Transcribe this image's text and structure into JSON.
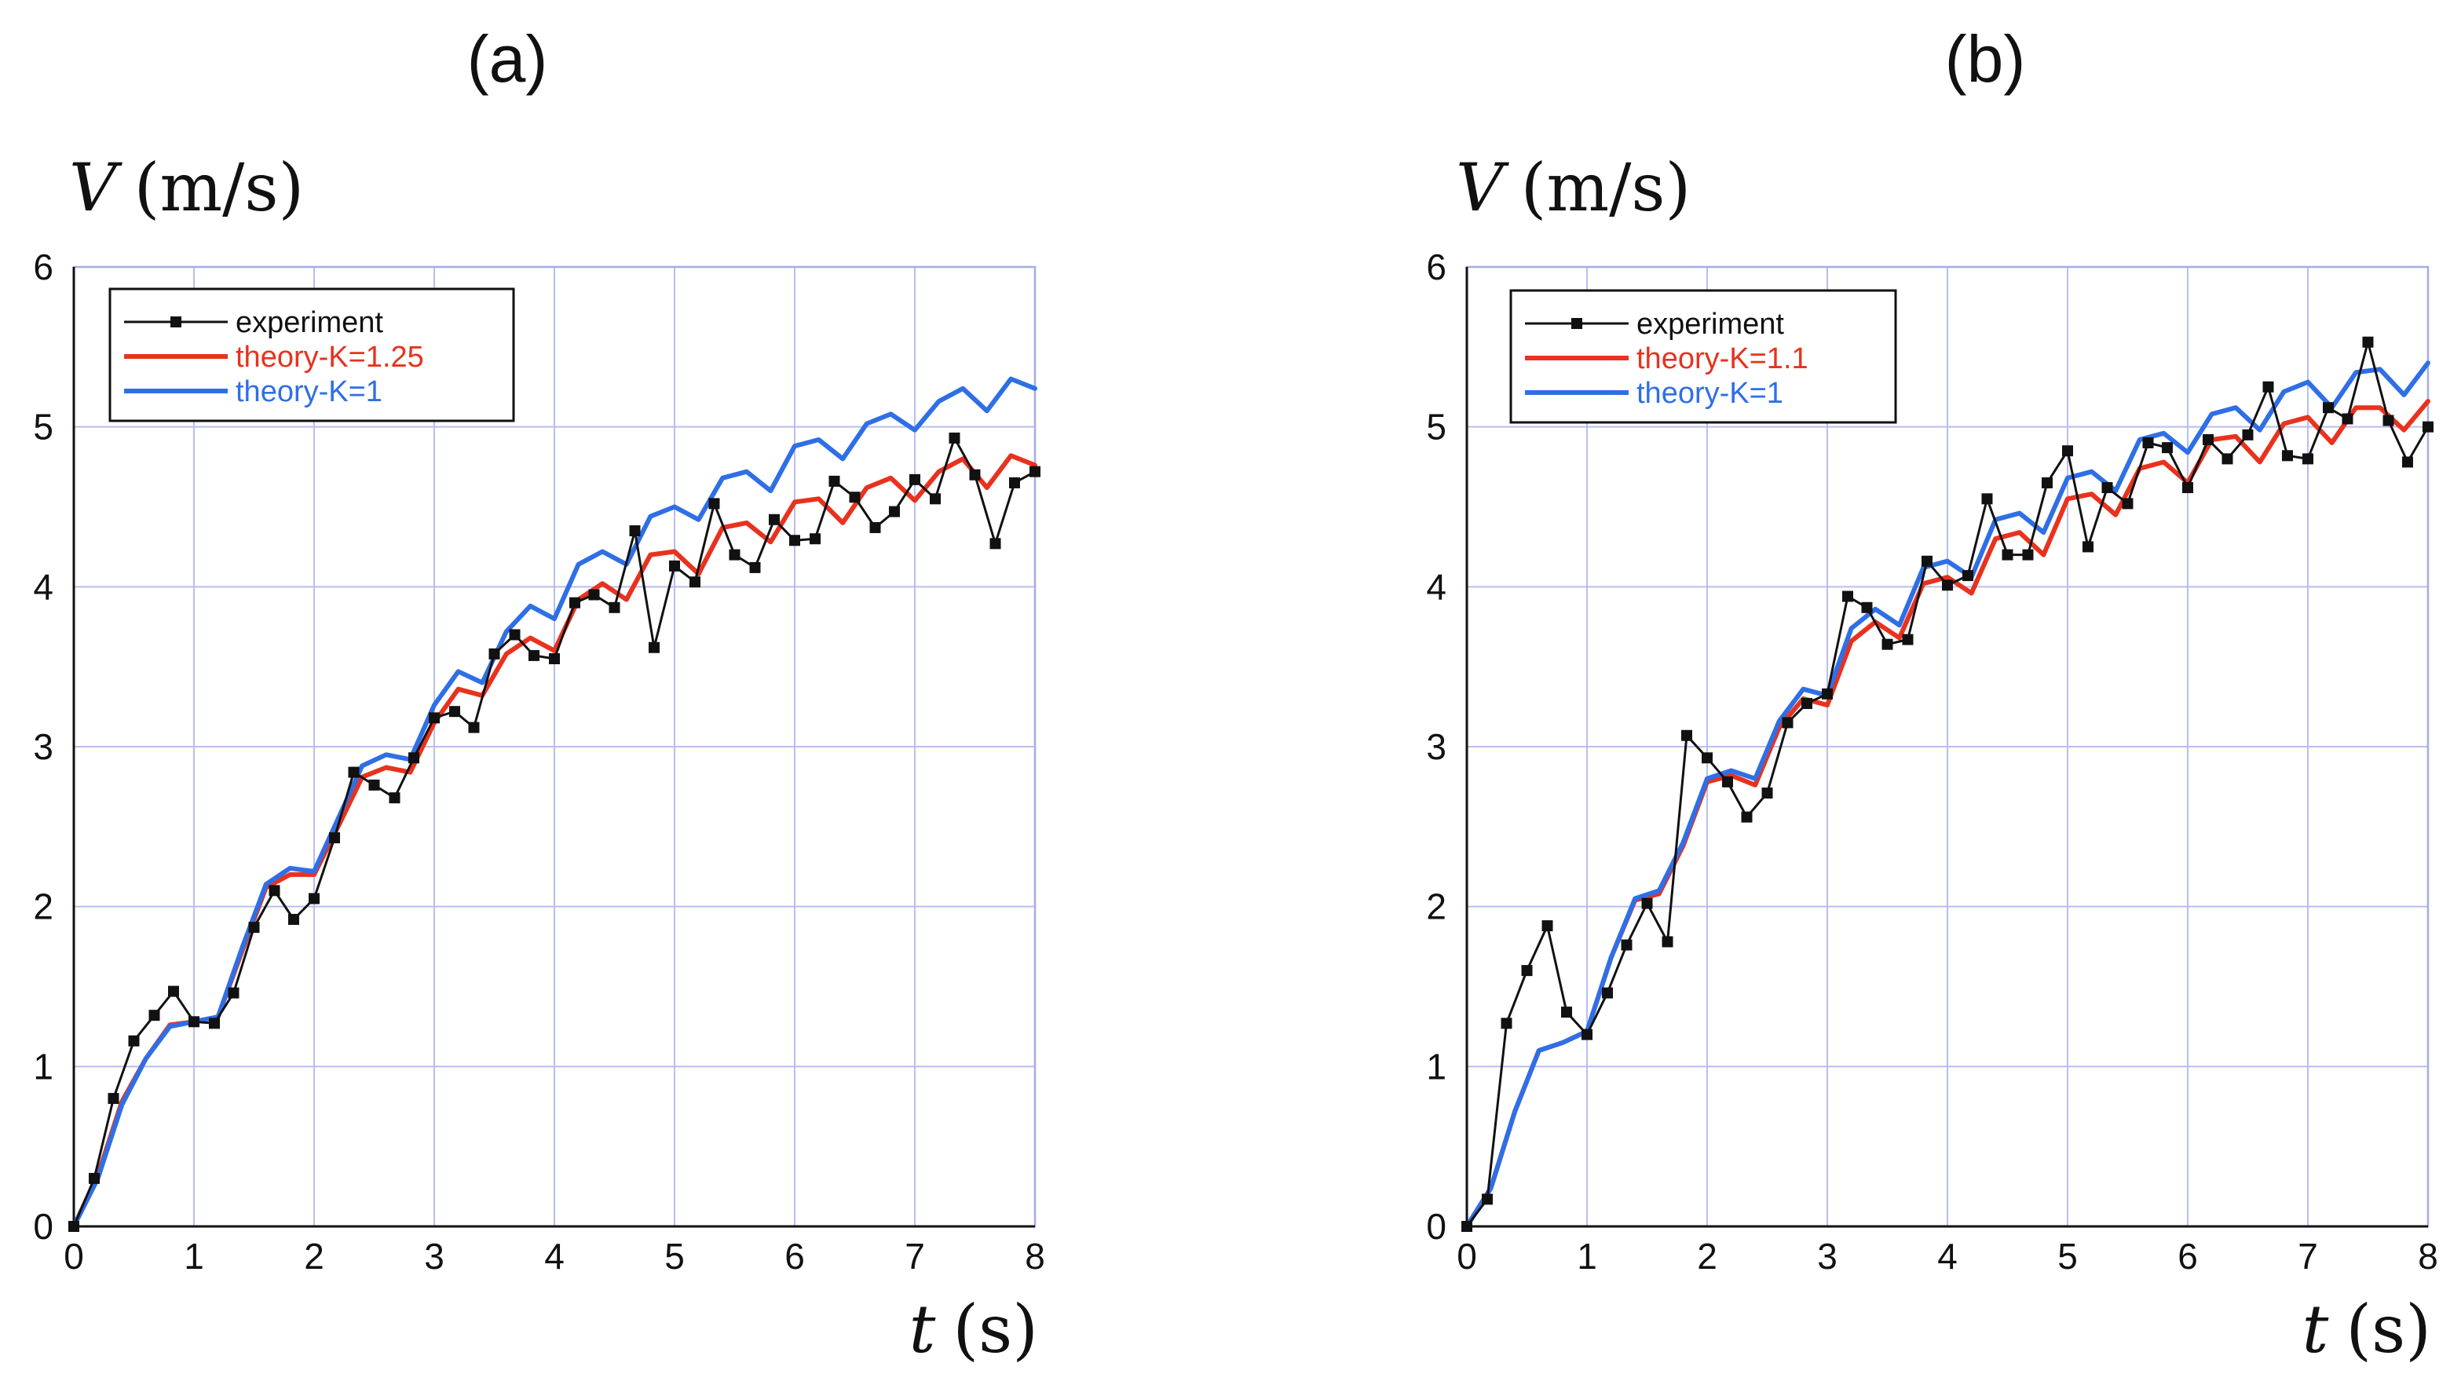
{
  "colors": {
    "experiment": "#111111",
    "theory_high_K": "#e8321e",
    "theory_K1": "#2f6fe6",
    "grid": "#b9bdf0"
  },
  "chart_data": [
    {
      "type": "line",
      "title": "(a)",
      "xlabel": "t (s)",
      "ylabel": "V (m/s)",
      "xlabel_var": "t",
      "xlabel_unit": "(s)",
      "ylabel_var": "V",
      "ylabel_unit": "(m/s)",
      "xlim": [
        0,
        8
      ],
      "ylim": [
        0,
        6
      ],
      "xticks": [
        "0",
        "1",
        "2",
        "3",
        "4",
        "5",
        "6",
        "7",
        "8"
      ],
      "yticks": [
        "0",
        "1",
        "2",
        "3",
        "4",
        "5",
        "6"
      ],
      "grid": true,
      "legend_position": "top-left",
      "series": [
        {
          "name": "experiment",
          "style": "line-square-markers",
          "x": [
            0,
            0.17,
            0.33,
            0.5,
            0.67,
            0.83,
            1.0,
            1.17,
            1.33,
            1.5,
            1.67,
            1.83,
            2.0,
            2.17,
            2.33,
            2.5,
            2.67,
            2.83,
            3.0,
            3.17,
            3.33,
            3.5,
            3.67,
            3.83,
            4.0,
            4.17,
            4.33,
            4.5,
            4.67,
            4.83,
            5.0,
            5.17,
            5.33,
            5.5,
            5.67,
            5.83,
            6.0,
            6.17,
            6.33,
            6.5,
            6.67,
            6.83,
            7.0,
            7.17,
            7.33,
            7.5,
            7.67,
            7.83,
            8.0
          ],
          "y": [
            0,
            0.3,
            0.8,
            1.16,
            1.32,
            1.47,
            1.28,
            1.27,
            1.46,
            1.87,
            2.1,
            1.92,
            2.05,
            2.43,
            2.84,
            2.76,
            2.68,
            2.93,
            3.18,
            3.22,
            3.12,
            3.58,
            3.7,
            3.57,
            3.55,
            3.9,
            3.95,
            3.87,
            4.35,
            3.62,
            4.13,
            4.03,
            4.52,
            4.2,
            4.12,
            4.42,
            4.29,
            4.3,
            4.66,
            4.56,
            4.37,
            4.47,
            4.67,
            4.55,
            4.93,
            4.7,
            4.27,
            4.65,
            4.72
          ]
        },
        {
          "name": "theory-K=1.25",
          "style": "line",
          "color_key": "theory_high_K",
          "K": 1.25,
          "x": [
            0.0,
            0.2,
            0.4,
            0.6,
            0.8,
            1.0,
            1.2,
            1.4,
            1.6,
            1.8,
            2.0,
            2.2,
            2.4,
            2.6,
            2.8,
            3.0,
            3.2,
            3.4,
            3.6,
            3.8,
            4.0,
            4.2,
            4.4,
            4.6,
            4.8,
            5.0,
            5.2,
            5.4,
            5.6,
            5.8,
            6.0,
            6.2,
            6.4,
            6.6,
            6.8,
            7.0,
            7.2,
            7.4,
            7.6,
            7.8,
            8.0
          ],
          "y": [
            0.0,
            0.32,
            0.78,
            1.05,
            1.26,
            1.28,
            1.31,
            1.72,
            2.12,
            2.2,
            2.2,
            2.5,
            2.81,
            2.87,
            2.84,
            3.15,
            3.36,
            3.32,
            3.58,
            3.68,
            3.6,
            3.92,
            4.02,
            3.92,
            4.2,
            4.22,
            4.08,
            4.37,
            4.4,
            4.28,
            4.53,
            4.55,
            4.4,
            4.62,
            4.68,
            4.54,
            4.72,
            4.8,
            4.62,
            4.82,
            4.76
          ]
        },
        {
          "name": "theory-K=1",
          "style": "line",
          "color_key": "theory_K1",
          "K": 1,
          "x": [
            0.0,
            0.2,
            0.4,
            0.6,
            0.8,
            1.0,
            1.2,
            1.4,
            1.6,
            1.8,
            2.0,
            2.2,
            2.4,
            2.6,
            2.8,
            3.0,
            3.2,
            3.4,
            3.6,
            3.8,
            4.0,
            4.2,
            4.4,
            4.6,
            4.8,
            5.0,
            5.2,
            5.4,
            5.6,
            5.8,
            6.0,
            6.2,
            6.4,
            6.6,
            6.8,
            7.0,
            7.2,
            7.4,
            7.6,
            7.8,
            8.0
          ],
          "y": [
            0.0,
            0.3,
            0.76,
            1.05,
            1.25,
            1.28,
            1.31,
            1.74,
            2.14,
            2.24,
            2.22,
            2.55,
            2.88,
            2.95,
            2.92,
            3.26,
            3.47,
            3.4,
            3.72,
            3.88,
            3.8,
            4.14,
            4.22,
            4.14,
            4.44,
            4.5,
            4.42,
            4.68,
            4.72,
            4.6,
            4.88,
            4.92,
            4.8,
            5.02,
            5.08,
            4.98,
            5.16,
            5.24,
            5.1,
            5.3,
            5.24
          ]
        }
      ]
    },
    {
      "type": "line",
      "title": "(b)",
      "xlabel": "t (s)",
      "ylabel": "V (m/s)",
      "xlabel_var": "t",
      "xlabel_unit": "(s)",
      "ylabel_var": "V",
      "ylabel_unit": "(m/s)",
      "xlim": [
        0,
        8
      ],
      "ylim": [
        0,
        6
      ],
      "xticks": [
        "0",
        "1",
        "2",
        "3",
        "4",
        "5",
        "6",
        "7",
        "8"
      ],
      "yticks": [
        "0",
        "1",
        "2",
        "3",
        "4",
        "5",
        "6"
      ],
      "grid": true,
      "legend_position": "top-left",
      "series": [
        {
          "name": "experiment",
          "style": "line-square-markers",
          "x": [
            0,
            0.17,
            0.33,
            0.5,
            0.67,
            0.83,
            1.0,
            1.17,
            1.33,
            1.5,
            1.67,
            1.83,
            2.0,
            2.17,
            2.33,
            2.5,
            2.67,
            2.83,
            3.0,
            3.17,
            3.33,
            3.5,
            3.67,
            3.83,
            4.0,
            4.17,
            4.33,
            4.5,
            4.67,
            4.83,
            5.0,
            5.17,
            5.33,
            5.5,
            5.67,
            5.83,
            6.0,
            6.17,
            6.33,
            6.5,
            6.67,
            6.83,
            7.0,
            7.17,
            7.33,
            7.5,
            7.67,
            7.83,
            8.0
          ],
          "y": [
            0,
            0.17,
            1.27,
            1.6,
            1.88,
            1.34,
            1.2,
            1.46,
            1.76,
            2.02,
            1.78,
            3.07,
            2.93,
            2.78,
            2.56,
            2.71,
            3.15,
            3.27,
            3.33,
            3.94,
            3.87,
            3.64,
            3.67,
            4.16,
            4.01,
            4.07,
            4.55,
            4.2,
            4.2,
            4.65,
            4.85,
            4.25,
            4.62,
            4.52,
            4.9,
            4.87,
            4.62,
            4.92,
            4.8,
            4.95,
            5.25,
            4.82,
            4.8,
            5.12,
            5.05,
            5.53,
            5.04,
            4.78,
            5.0
          ]
        },
        {
          "name": "theory-K=1.1",
          "style": "line",
          "color_key": "theory_high_K",
          "K": 1.1,
          "x": [
            0.0,
            0.2,
            0.4,
            0.6,
            0.8,
            1.0,
            1.2,
            1.4,
            1.6,
            1.8,
            2.0,
            2.2,
            2.4,
            2.6,
            2.8,
            3.0,
            3.2,
            3.4,
            3.6,
            3.8,
            4.0,
            4.2,
            4.4,
            4.6,
            4.8,
            5.0,
            5.2,
            5.4,
            5.6,
            5.8,
            6.0,
            6.2,
            6.4,
            6.6,
            6.8,
            7.0,
            7.2,
            7.4,
            7.6,
            7.8,
            8.0
          ],
          "y": [
            0.0,
            0.24,
            0.72,
            1.1,
            1.15,
            1.22,
            1.68,
            2.04,
            2.08,
            2.38,
            2.78,
            2.82,
            2.76,
            3.12,
            3.3,
            3.26,
            3.66,
            3.78,
            3.68,
            4.02,
            4.06,
            3.96,
            4.3,
            4.34,
            4.2,
            4.55,
            4.58,
            4.45,
            4.74,
            4.78,
            4.65,
            4.92,
            4.94,
            4.78,
            5.02,
            5.06,
            4.9,
            5.12,
            5.12,
            4.98,
            5.16
          ]
        },
        {
          "name": "theory-K=1",
          "style": "line",
          "color_key": "theory_K1",
          "K": 1,
          "x": [
            0.0,
            0.2,
            0.4,
            0.6,
            0.8,
            1.0,
            1.2,
            1.4,
            1.6,
            1.8,
            2.0,
            2.2,
            2.4,
            2.6,
            2.8,
            3.0,
            3.2,
            3.4,
            3.6,
            3.8,
            4.0,
            4.2,
            4.4,
            4.6,
            4.8,
            5.0,
            5.2,
            5.4,
            5.6,
            5.8,
            6.0,
            6.2,
            6.4,
            6.6,
            6.8,
            7.0,
            7.2,
            7.4,
            7.6,
            7.8,
            8.0
          ],
          "y": [
            0.0,
            0.24,
            0.72,
            1.1,
            1.15,
            1.22,
            1.68,
            2.05,
            2.1,
            2.4,
            2.8,
            2.85,
            2.8,
            3.16,
            3.36,
            3.32,
            3.74,
            3.86,
            3.76,
            4.12,
            4.16,
            4.06,
            4.42,
            4.46,
            4.34,
            4.68,
            4.72,
            4.6,
            4.92,
            4.96,
            4.84,
            5.08,
            5.12,
            4.98,
            5.22,
            5.28,
            5.12,
            5.34,
            5.36,
            5.2,
            5.4
          ]
        }
      ]
    }
  ]
}
